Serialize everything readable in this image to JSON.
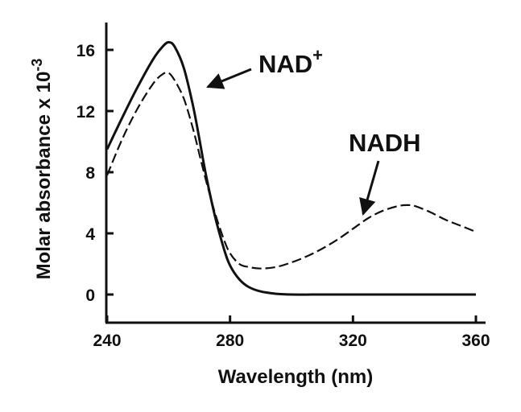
{
  "chart_data": {
    "type": "line",
    "title": "",
    "xlabel": "Wavelength (nm)",
    "ylabel": "Molar absorbance x 10",
    "ylabel_exponent": "-3",
    "xlim": [
      240,
      360
    ],
    "ylim": [
      -1.8,
      17.8
    ],
    "xticks": [
      240,
      280,
      320,
      360
    ],
    "xtick_labels": [
      "240",
      "280",
      "320",
      "360"
    ],
    "yticks": [
      0,
      4,
      8,
      12,
      16
    ],
    "ytick_labels": [
      "0",
      "4",
      "8",
      "12",
      "16"
    ],
    "grid": false,
    "legend": "none",
    "series": [
      {
        "name": "NAD",
        "name_superscript": "+",
        "style": "solid",
        "color": "#111111",
        "x": [
          240,
          245,
          250,
          255,
          258,
          260,
          262,
          265,
          268,
          270,
          272,
          275,
          278,
          280,
          283,
          286,
          290,
          295,
          300,
          310,
          320,
          330,
          340,
          350,
          360
        ],
        "y": [
          9.5,
          11.6,
          13.6,
          15.4,
          16.2,
          16.5,
          16.2,
          14.8,
          12.3,
          10.2,
          8.0,
          5.2,
          3.0,
          1.9,
          1.0,
          0.5,
          0.2,
          0.05,
          0,
          0,
          0,
          0,
          0,
          0,
          0
        ]
      },
      {
        "name": "NADH",
        "style": "dashed",
        "color": "#111111",
        "x": [
          240,
          245,
          250,
          255,
          258,
          260,
          262,
          265,
          268,
          270,
          272,
          275,
          278,
          280,
          283,
          286,
          290,
          295,
          300,
          305,
          310,
          315,
          320,
          325,
          330,
          335,
          338,
          340,
          345,
          350,
          355,
          360
        ],
        "y": [
          7.8,
          10.2,
          12.2,
          13.8,
          14.4,
          14.5,
          14.0,
          12.8,
          10.8,
          9.2,
          7.6,
          5.4,
          3.6,
          2.7,
          2.0,
          1.8,
          1.7,
          1.8,
          2.1,
          2.5,
          3.0,
          3.6,
          4.3,
          5.0,
          5.5,
          5.8,
          5.85,
          5.8,
          5.4,
          4.9,
          4.5,
          4.1
        ]
      }
    ],
    "annotations": [
      {
        "text": "NAD",
        "superscript": "+",
        "points_to": "NAD",
        "target": [
          270,
          13.4
        ]
      },
      {
        "text": "NADH",
        "points_to": "NADH",
        "target": [
          322,
          5.2
        ]
      }
    ]
  }
}
